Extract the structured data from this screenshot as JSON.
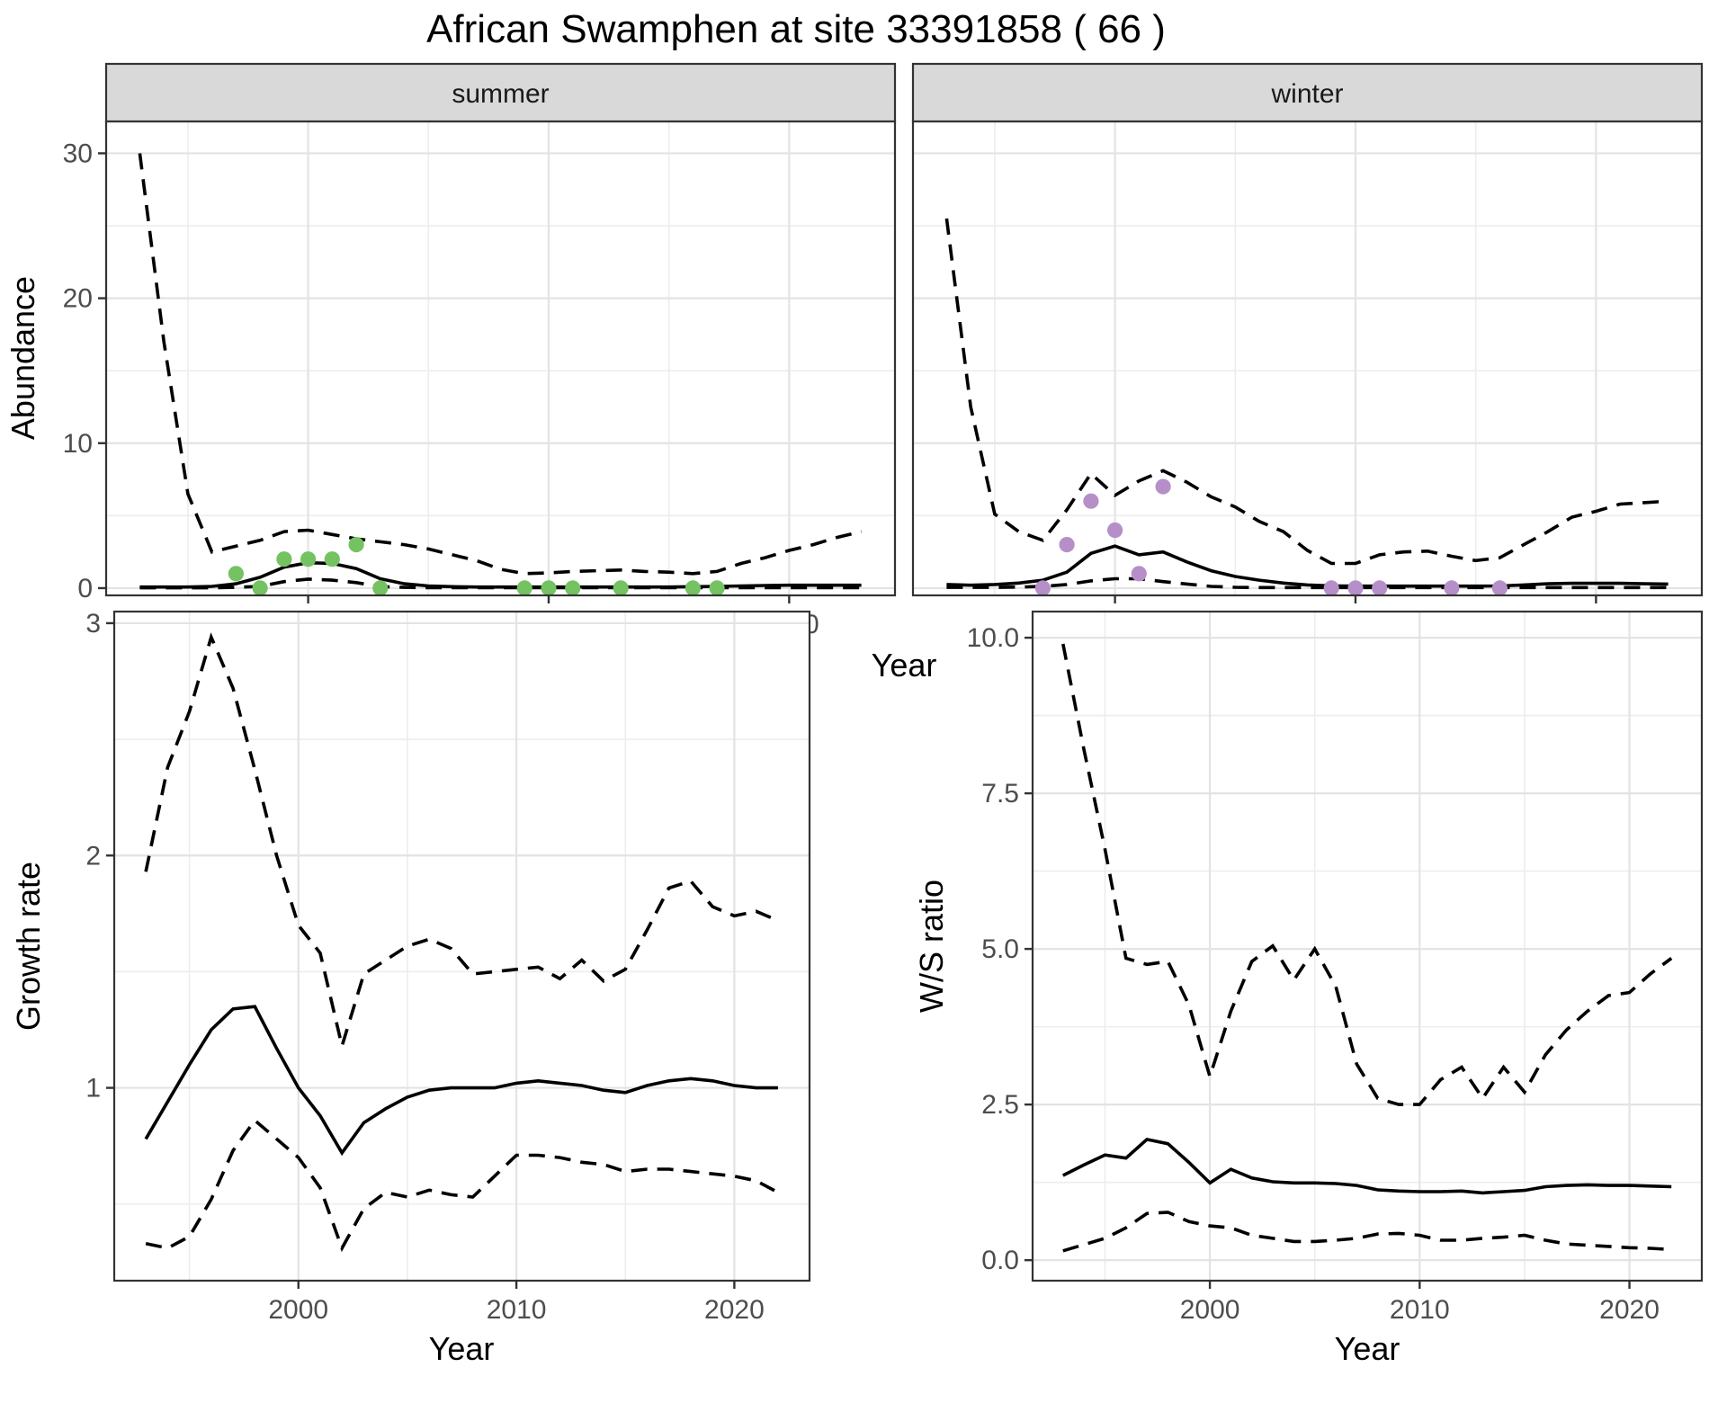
{
  "title": "African Swamphen at site 33391858 ( 66 )",
  "axis_labels": {
    "abundance": "Abundance",
    "year": "Year",
    "growth": "Growth rate",
    "ws": "W/S ratio"
  },
  "facets": {
    "summer": "summer",
    "winter": "winter"
  },
  "colors": {
    "summer_point": "#74C261",
    "winter_point": "#B68FC9",
    "strip_bg": "#D9D9D9",
    "strip_text": "#1A1A1A",
    "panel_border": "#333333",
    "grid_major": "#E3E3E3",
    "grid_minor": "#EDEDED",
    "line": "#000000",
    "tick": "#333333",
    "tick_label": "#4D4D4D",
    "title_color": "#000000"
  },
  "chart_data": [
    {
      "type": "line",
      "panel_id": "abundance-summer",
      "facet": "summer",
      "xlabel": "Year",
      "ylabel": "Abundance",
      "xlim": [
        1991.6,
        2024.4
      ],
      "ylim": [
        -0.5,
        32.2
      ],
      "xticks": [
        2000,
        2010,
        2020
      ],
      "xtick_labels": [
        "2000",
        "2010",
        "2020"
      ],
      "yticks": [
        0,
        10,
        20,
        30
      ],
      "ytick_labels": [
        "0",
        "10",
        "20",
        "30"
      ],
      "x": [
        1993,
        1994,
        1995,
        1996,
        1997,
        1998,
        1999,
        2000,
        2001,
        2002,
        2003,
        2004,
        2005,
        2006,
        2007,
        2008,
        2009,
        2010,
        2011,
        2012,
        2013,
        2014,
        2015,
        2016,
        2017,
        2018,
        2019,
        2020,
        2021,
        2022,
        2023
      ],
      "series": [
        {
          "name": "upper_95_ci",
          "style": "dashed",
          "values": [
            30,
            17,
            6.5,
            2.5,
            2.9,
            3.3,
            3.9,
            4.0,
            3.7,
            3.4,
            3.2,
            3.0,
            2.7,
            2.3,
            1.9,
            1.3,
            1.0,
            1.05,
            1.15,
            1.2,
            1.25,
            1.15,
            1.1,
            1.0,
            1.15,
            1.7,
            2.1,
            2.6,
            3.0,
            3.5,
            3.9
          ]
        },
        {
          "name": "lower_95_ci",
          "style": "dashed",
          "values": [
            0.02,
            0.02,
            0.02,
            0.03,
            0.05,
            0.12,
            0.45,
            0.62,
            0.55,
            0.38,
            0.1,
            0.05,
            0.03,
            0.03,
            0.03,
            0.03,
            0.03,
            0.03,
            0.03,
            0.03,
            0.03,
            0.03,
            0.03,
            0.03,
            0.03,
            0.03,
            0.03,
            0.03,
            0.03,
            0.03,
            0.03
          ]
        },
        {
          "name": "predicted_median",
          "style": "solid",
          "values": [
            0.08,
            0.08,
            0.08,
            0.12,
            0.3,
            0.75,
            1.45,
            1.75,
            1.7,
            1.35,
            0.65,
            0.3,
            0.15,
            0.1,
            0.08,
            0.08,
            0.08,
            0.08,
            0.08,
            0.08,
            0.08,
            0.08,
            0.08,
            0.1,
            0.12,
            0.15,
            0.18,
            0.2,
            0.2,
            0.2,
            0.2
          ]
        }
      ],
      "points": {
        "name": "observed_counts_summer",
        "color_key": "summer_point",
        "x": [
          1997,
          1998,
          1999,
          2000,
          2001,
          2002,
          2003,
          2009,
          2010,
          2011,
          2013,
          2016,
          2017
        ],
        "y": [
          1,
          0,
          2,
          2,
          2,
          3,
          0,
          0,
          0,
          0,
          0,
          0,
          0
        ]
      }
    },
    {
      "type": "line",
      "panel_id": "abundance-winter",
      "facet": "winter",
      "xlabel": "Year",
      "ylabel": "Abundance",
      "xlim": [
        1991.6,
        2024.4
      ],
      "ylim": [
        -0.5,
        32.2
      ],
      "xticks": [
        2000,
        2010,
        2020
      ],
      "xtick_labels": [
        "2000",
        "2010",
        "2020"
      ],
      "yticks": [
        0,
        10,
        20,
        30
      ],
      "ytick_labels": [
        "0",
        "10",
        "20",
        "30"
      ],
      "x": [
        1993,
        1994,
        1995,
        1996,
        1997,
        1998,
        1999,
        2000,
        2001,
        2002,
        2003,
        2004,
        2005,
        2006,
        2007,
        2008,
        2009,
        2010,
        2011,
        2012,
        2013,
        2014,
        2015,
        2016,
        2017,
        2018,
        2019,
        2020,
        2021,
        2022,
        2023
      ],
      "series": [
        {
          "name": "upper_95_ci",
          "style": "dashed",
          "values": [
            25.5,
            12.5,
            5.1,
            3.9,
            3.3,
            5.4,
            7.9,
            6.4,
            7.4,
            8.1,
            7.3,
            6.3,
            5.6,
            4.6,
            3.9,
            2.6,
            1.7,
            1.7,
            2.3,
            2.5,
            2.55,
            2.2,
            1.9,
            2.1,
            3.0,
            3.9,
            4.9,
            5.3,
            5.8,
            5.9,
            6.0
          ]
        },
        {
          "name": "lower_95_ci",
          "style": "dashed",
          "values": [
            0.05,
            0.05,
            0.05,
            0.08,
            0.12,
            0.25,
            0.5,
            0.65,
            0.65,
            0.45,
            0.28,
            0.12,
            0.06,
            0.04,
            0.04,
            0.04,
            0.04,
            0.04,
            0.04,
            0.04,
            0.04,
            0.04,
            0.04,
            0.04,
            0.04,
            0.04,
            0.04,
            0.04,
            0.04,
            0.04,
            0.04
          ]
        },
        {
          "name": "predicted_median",
          "style": "solid",
          "values": [
            0.25,
            0.2,
            0.25,
            0.35,
            0.55,
            1.1,
            2.4,
            2.9,
            2.3,
            2.5,
            1.8,
            1.2,
            0.8,
            0.55,
            0.35,
            0.22,
            0.16,
            0.14,
            0.14,
            0.14,
            0.14,
            0.14,
            0.14,
            0.15,
            0.22,
            0.3,
            0.33,
            0.33,
            0.33,
            0.3,
            0.28
          ]
        }
      ],
      "points": {
        "name": "observed_counts_winter",
        "color_key": "winter_point",
        "x": [
          1997,
          1998,
          1999,
          2000,
          2001,
          2002,
          2009,
          2010,
          2011,
          2014,
          2016
        ],
        "y": [
          0,
          3,
          6,
          4,
          1,
          7,
          0,
          0,
          0,
          0,
          0
        ]
      }
    },
    {
      "type": "line",
      "panel_id": "growth-rate",
      "xlabel": "Year",
      "ylabel": "Growth rate",
      "xlim": [
        1991.55,
        2023.45
      ],
      "ylim": [
        0.17,
        3.05
      ],
      "xticks": [
        2000,
        2010,
        2020
      ],
      "xtick_labels": [
        "2000",
        "2010",
        "2020"
      ],
      "yticks": [
        1,
        2,
        3
      ],
      "ytick_labels": [
        "1",
        "2",
        "3"
      ],
      "x": [
        1993,
        1994,
        1995,
        1996,
        1997,
        1998,
        1999,
        2000,
        2001,
        2002,
        2003,
        2004,
        2005,
        2006,
        2007,
        2008,
        2009,
        2010,
        2011,
        2012,
        2013,
        2014,
        2015,
        2016,
        2017,
        2018,
        2019,
        2020,
        2021,
        2022
      ],
      "series": [
        {
          "name": "upper_95_ci",
          "style": "dashed",
          "values": [
            1.93,
            2.38,
            2.62,
            2.94,
            2.72,
            2.37,
            2.0,
            1.7,
            1.58,
            1.18,
            1.49,
            1.55,
            1.61,
            1.64,
            1.6,
            1.49,
            1.5,
            1.51,
            1.52,
            1.47,
            1.55,
            1.46,
            1.51,
            1.68,
            1.86,
            1.89,
            1.78,
            1.74,
            1.76,
            1.72
          ]
        },
        {
          "name": "lower_95_ci",
          "style": "dashed",
          "values": [
            0.33,
            0.31,
            0.36,
            0.52,
            0.73,
            0.86,
            0.78,
            0.7,
            0.57,
            0.31,
            0.48,
            0.55,
            0.53,
            0.56,
            0.54,
            0.53,
            0.62,
            0.71,
            0.71,
            0.7,
            0.68,
            0.67,
            0.64,
            0.65,
            0.65,
            0.64,
            0.63,
            0.62,
            0.6,
            0.55
          ]
        },
        {
          "name": "median_growth_rate",
          "style": "solid",
          "values": [
            0.78,
            0.94,
            1.1,
            1.25,
            1.34,
            1.35,
            1.17,
            1.0,
            0.88,
            0.72,
            0.85,
            0.91,
            0.96,
            0.99,
            1.0,
            1.0,
            1.0,
            1.02,
            1.03,
            1.02,
            1.01,
            0.99,
            0.98,
            1.01,
            1.03,
            1.04,
            1.03,
            1.01,
            1.0,
            1.0
          ]
        }
      ]
    },
    {
      "type": "line",
      "panel_id": "ws-ratio",
      "xlabel": "Year",
      "ylabel": "W/S ratio",
      "xlim": [
        1991.55,
        2023.45
      ],
      "ylim": [
        -0.33,
        10.42
      ],
      "xticks": [
        2000,
        2010,
        2020
      ],
      "xtick_labels": [
        "2000",
        "2010",
        "2020"
      ],
      "yticks": [
        0,
        2.5,
        5,
        7.5,
        10
      ],
      "ytick_labels": [
        "0.0",
        "2.5",
        "5.0",
        "7.5",
        "10.0"
      ],
      "x": [
        1993,
        1994,
        1995,
        1996,
        1997,
        1998,
        1999,
        2000,
        2001,
        2002,
        2003,
        2004,
        2005,
        2006,
        2007,
        2008,
        2009,
        2010,
        2011,
        2012,
        2013,
        2014,
        2015,
        2016,
        2017,
        2018,
        2019,
        2020,
        2021,
        2022
      ],
      "series": [
        {
          "name": "upper_95_ci",
          "style": "dashed",
          "values": [
            9.9,
            8.2,
            6.6,
            4.85,
            4.75,
            4.8,
            4.1,
            2.95,
            4.0,
            4.8,
            5.05,
            4.5,
            5.0,
            4.4,
            3.15,
            2.6,
            2.5,
            2.5,
            2.9,
            3.1,
            2.6,
            3.1,
            2.7,
            3.3,
            3.7,
            4.0,
            4.25,
            4.3,
            4.6,
            4.85
          ]
        },
        {
          "name": "lower_95_ci",
          "style": "dashed",
          "values": [
            0.15,
            0.25,
            0.35,
            0.52,
            0.75,
            0.77,
            0.62,
            0.55,
            0.52,
            0.4,
            0.35,
            0.3,
            0.3,
            0.32,
            0.35,
            0.42,
            0.43,
            0.4,
            0.32,
            0.32,
            0.35,
            0.37,
            0.4,
            0.32,
            0.26,
            0.24,
            0.22,
            0.2,
            0.19,
            0.17
          ]
        },
        {
          "name": "median_ws_ratio",
          "style": "solid",
          "values": [
            1.36,
            1.53,
            1.69,
            1.64,
            1.94,
            1.87,
            1.57,
            1.24,
            1.46,
            1.32,
            1.26,
            1.24,
            1.24,
            1.23,
            1.2,
            1.13,
            1.11,
            1.1,
            1.1,
            1.11,
            1.08,
            1.1,
            1.12,
            1.18,
            1.2,
            1.21,
            1.2,
            1.2,
            1.19,
            1.18
          ]
        }
      ]
    }
  ]
}
